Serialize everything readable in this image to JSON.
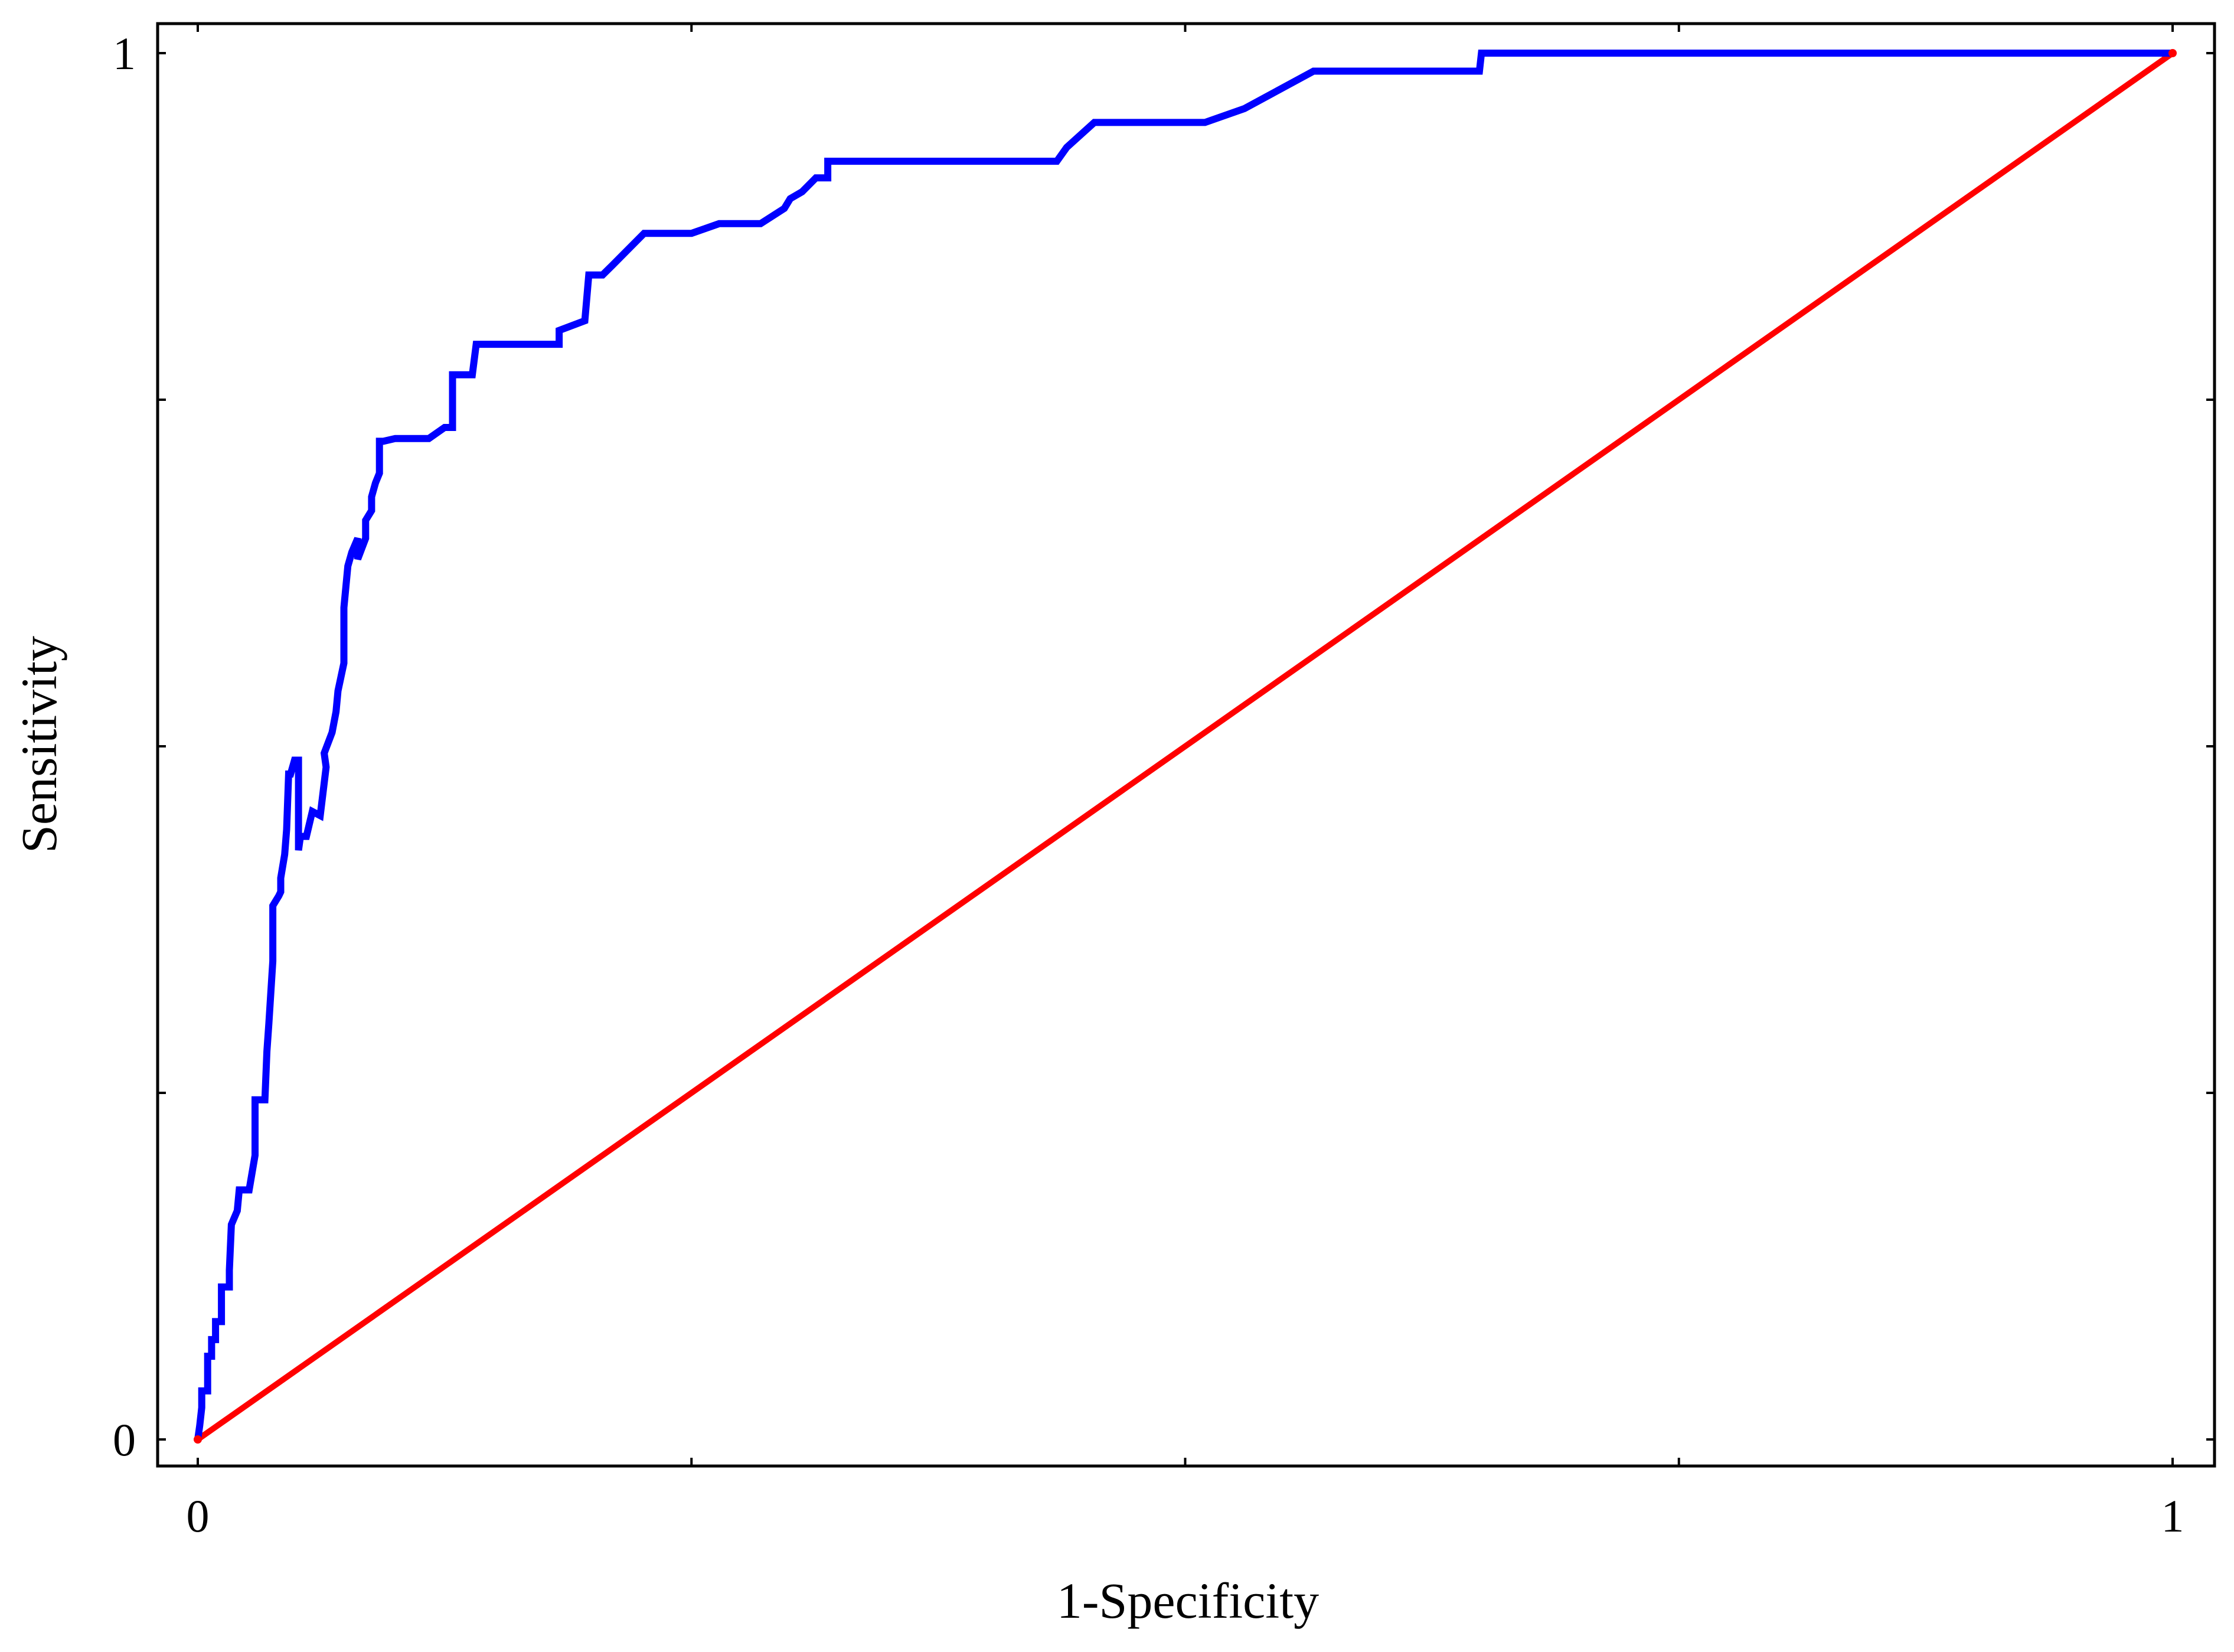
{
  "chart_data": {
    "type": "line",
    "title": "",
    "xlabel": "1-Specificity",
    "ylabel": "Sensitivity",
    "xlim": [
      0,
      1
    ],
    "ylim": [
      0,
      1
    ],
    "x_ticks": [
      0,
      0.25,
      0.5,
      0.75,
      1
    ],
    "y_ticks": [
      0,
      0.25,
      0.5,
      0.75,
      1
    ],
    "x_tick_labels": [
      "0",
      "",
      "",
      "",
      "1"
    ],
    "y_tick_labels": [
      "0",
      "",
      "",
      "",
      "1"
    ],
    "grid": false,
    "legend": "none",
    "series": [
      {
        "color": "#0000ff",
        "points": [
          [
            0.0,
            0.0
          ],
          [
            0.001,
            0.01
          ],
          [
            0.002,
            0.023
          ],
          [
            0.002,
            0.035
          ],
          [
            0.005,
            0.035
          ],
          [
            0.005,
            0.06
          ],
          [
            0.007,
            0.06
          ],
          [
            0.007,
            0.072
          ],
          [
            0.009,
            0.072
          ],
          [
            0.009,
            0.085
          ],
          [
            0.012,
            0.085
          ],
          [
            0.012,
            0.11
          ],
          [
            0.016,
            0.11
          ],
          [
            0.016,
            0.122
          ],
          [
            0.017,
            0.155
          ],
          [
            0.02,
            0.165
          ],
          [
            0.021,
            0.18
          ],
          [
            0.026,
            0.18
          ],
          [
            0.029,
            0.205
          ],
          [
            0.029,
            0.245
          ],
          [
            0.034,
            0.245
          ],
          [
            0.035,
            0.28
          ],
          [
            0.036,
            0.3
          ],
          [
            0.038,
            0.345
          ],
          [
            0.038,
            0.385
          ],
          [
            0.041,
            0.392
          ],
          [
            0.042,
            0.395
          ],
          [
            0.042,
            0.405
          ],
          [
            0.044,
            0.422
          ],
          [
            0.045,
            0.44
          ],
          [
            0.046,
            0.48
          ],
          [
            0.047,
            0.48
          ],
          [
            0.049,
            0.49
          ],
          [
            0.051,
            0.49
          ],
          [
            0.051,
            0.425
          ],
          [
            0.052,
            0.435
          ],
          [
            0.055,
            0.435
          ],
          [
            0.058,
            0.453
          ],
          [
            0.062,
            0.45
          ],
          [
            0.065,
            0.485
          ],
          [
            0.064,
            0.495
          ],
          [
            0.068,
            0.51
          ],
          [
            0.07,
            0.525
          ],
          [
            0.071,
            0.54
          ],
          [
            0.074,
            0.56
          ],
          [
            0.074,
            0.6
          ],
          [
            0.076,
            0.63
          ],
          [
            0.078,
            0.64
          ],
          [
            0.081,
            0.65
          ],
          [
            0.081,
            0.635
          ],
          [
            0.085,
            0.65
          ],
          [
            0.085,
            0.663
          ],
          [
            0.088,
            0.67
          ],
          [
            0.088,
            0.68
          ],
          [
            0.09,
            0.69
          ],
          [
            0.092,
            0.697
          ],
          [
            0.092,
            0.72
          ],
          [
            0.094,
            0.72
          ],
          [
            0.1,
            0.722
          ],
          [
            0.117,
            0.722
          ],
          [
            0.125,
            0.73
          ],
          [
            0.129,
            0.73
          ],
          [
            0.129,
            0.768
          ],
          [
            0.139,
            0.768
          ],
          [
            0.141,
            0.79
          ],
          [
            0.183,
            0.79
          ],
          [
            0.183,
            0.8
          ],
          [
            0.196,
            0.807
          ],
          [
            0.198,
            0.84
          ],
          [
            0.205,
            0.84
          ],
          [
            0.21,
            0.847
          ],
          [
            0.226,
            0.87
          ],
          [
            0.25,
            0.87
          ],
          [
            0.264,
            0.877
          ],
          [
            0.285,
            0.877
          ],
          [
            0.297,
            0.888
          ],
          [
            0.3,
            0.895
          ],
          [
            0.306,
            0.9
          ],
          [
            0.313,
            0.91
          ],
          [
            0.319,
            0.91
          ],
          [
            0.319,
            0.922
          ],
          [
            0.435,
            0.922
          ],
          [
            0.44,
            0.932
          ],
          [
            0.454,
            0.95
          ],
          [
            0.51,
            0.95
          ],
          [
            0.53,
            0.96
          ],
          [
            0.565,
            0.987
          ],
          [
            0.649,
            0.987
          ],
          [
            0.65,
            1.0
          ],
          [
            1.0,
            1.0
          ]
        ]
      },
      {
        "color": "#ff0000",
        "x": [
          0,
          1
        ],
        "y": [
          0,
          1
        ]
      }
    ]
  }
}
